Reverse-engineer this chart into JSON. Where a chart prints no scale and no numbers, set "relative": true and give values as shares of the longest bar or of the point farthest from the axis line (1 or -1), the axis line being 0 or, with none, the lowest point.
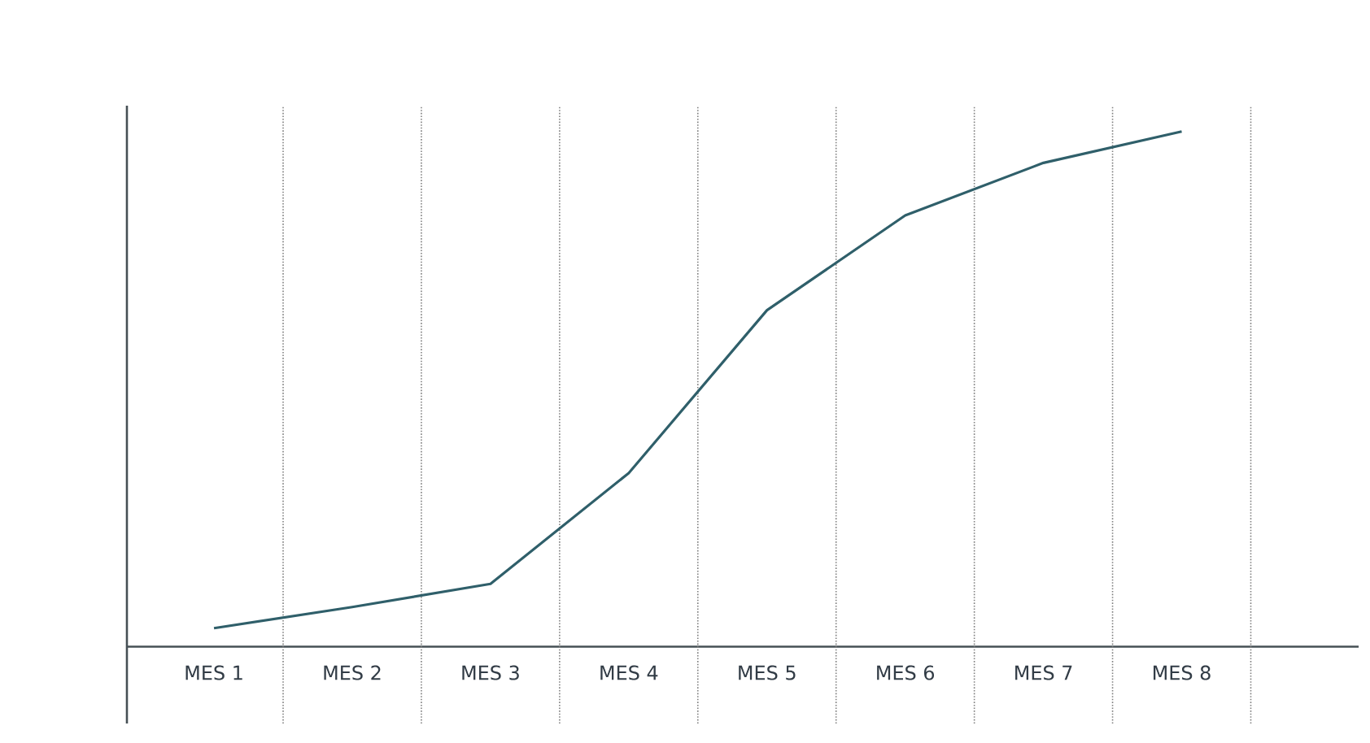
{
  "chart_data": {
    "type": "line",
    "relative": true,
    "marker": "none",
    "line_style": "solid",
    "categories": [
      "MES 1",
      "MES 2",
      "MES 3",
      "MES 4",
      "MES 5",
      "MES 6",
      "MES 7",
      "MES 8"
    ],
    "series": [
      {
        "color": "#2f5f6a",
        "values": [
          0.036,
          0.077,
          0.122,
          0.337,
          0.653,
          0.837,
          0.939,
          1
        ]
      }
    ]
  }
}
